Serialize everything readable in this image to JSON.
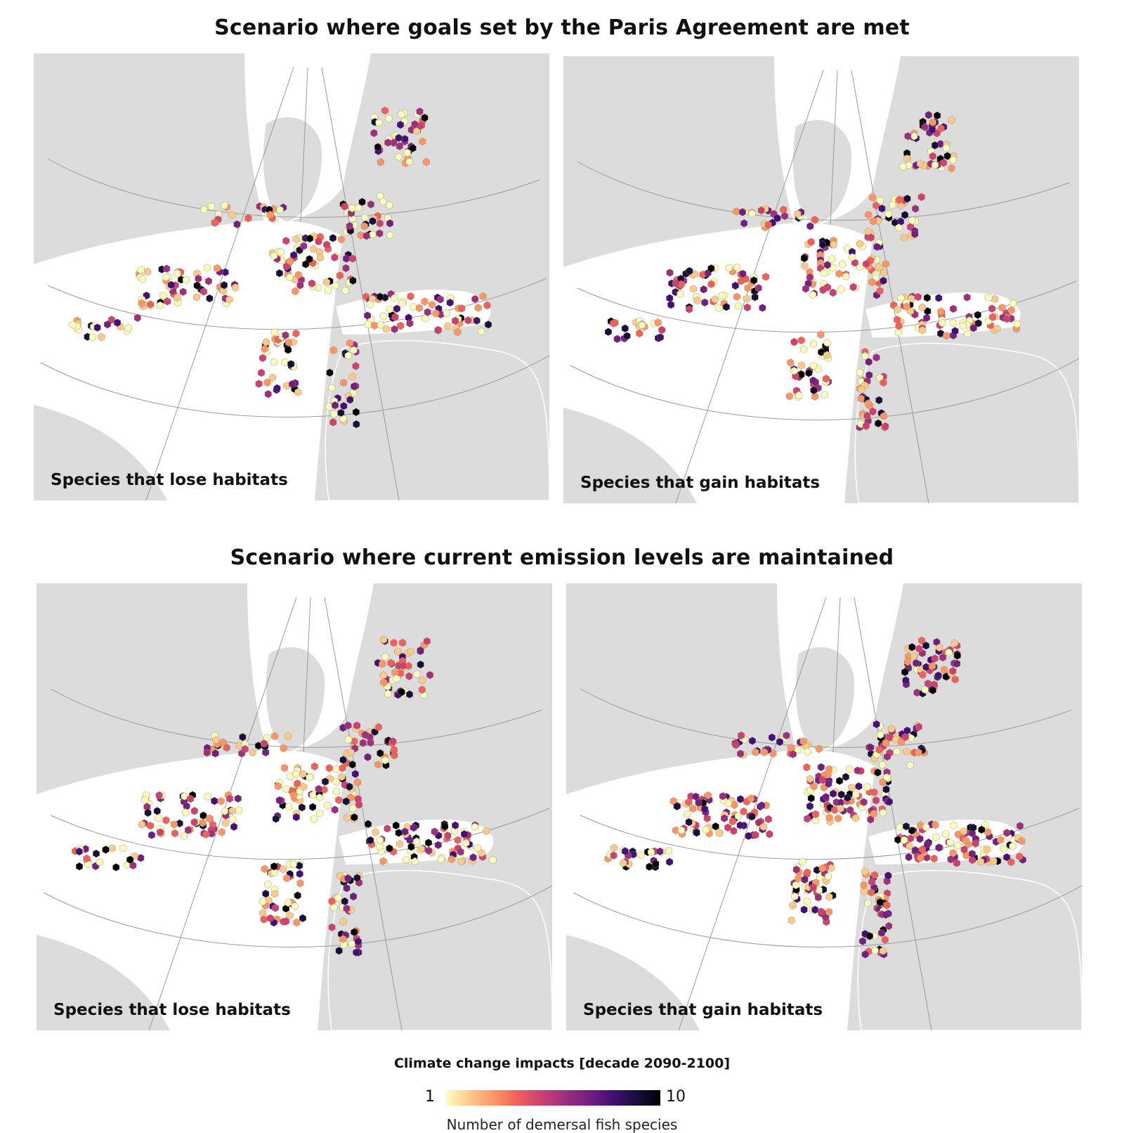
{
  "titles": {
    "scenario_paris": "Scenario where goals set by the Paris Agreement are met",
    "scenario_current": "Scenario where current emission levels are maintained"
  },
  "panels": [
    {
      "id": "paris-lose",
      "label": "Species that lose habitats",
      "intensity": 0.45
    },
    {
      "id": "paris-gain",
      "label": "Species that gain habitats",
      "intensity": 0.55
    },
    {
      "id": "current-lose",
      "label": "Species that lose habitats",
      "intensity": 0.6
    },
    {
      "id": "current-gain",
      "label": "Species that gain habitats",
      "intensity": 0.85
    }
  ],
  "legend": {
    "title": "Climate change impacts [decade 2090-2100]",
    "min": "1",
    "max": "10",
    "caption": "Number of demersal fish species",
    "colors": [
      "#fcfdbf",
      "#fec98d",
      "#fd9567",
      "#f1605d",
      "#cd4071",
      "#9e2f7f",
      "#721f81",
      "#440f76",
      "#180f3d",
      "#000004"
    ]
  }
}
